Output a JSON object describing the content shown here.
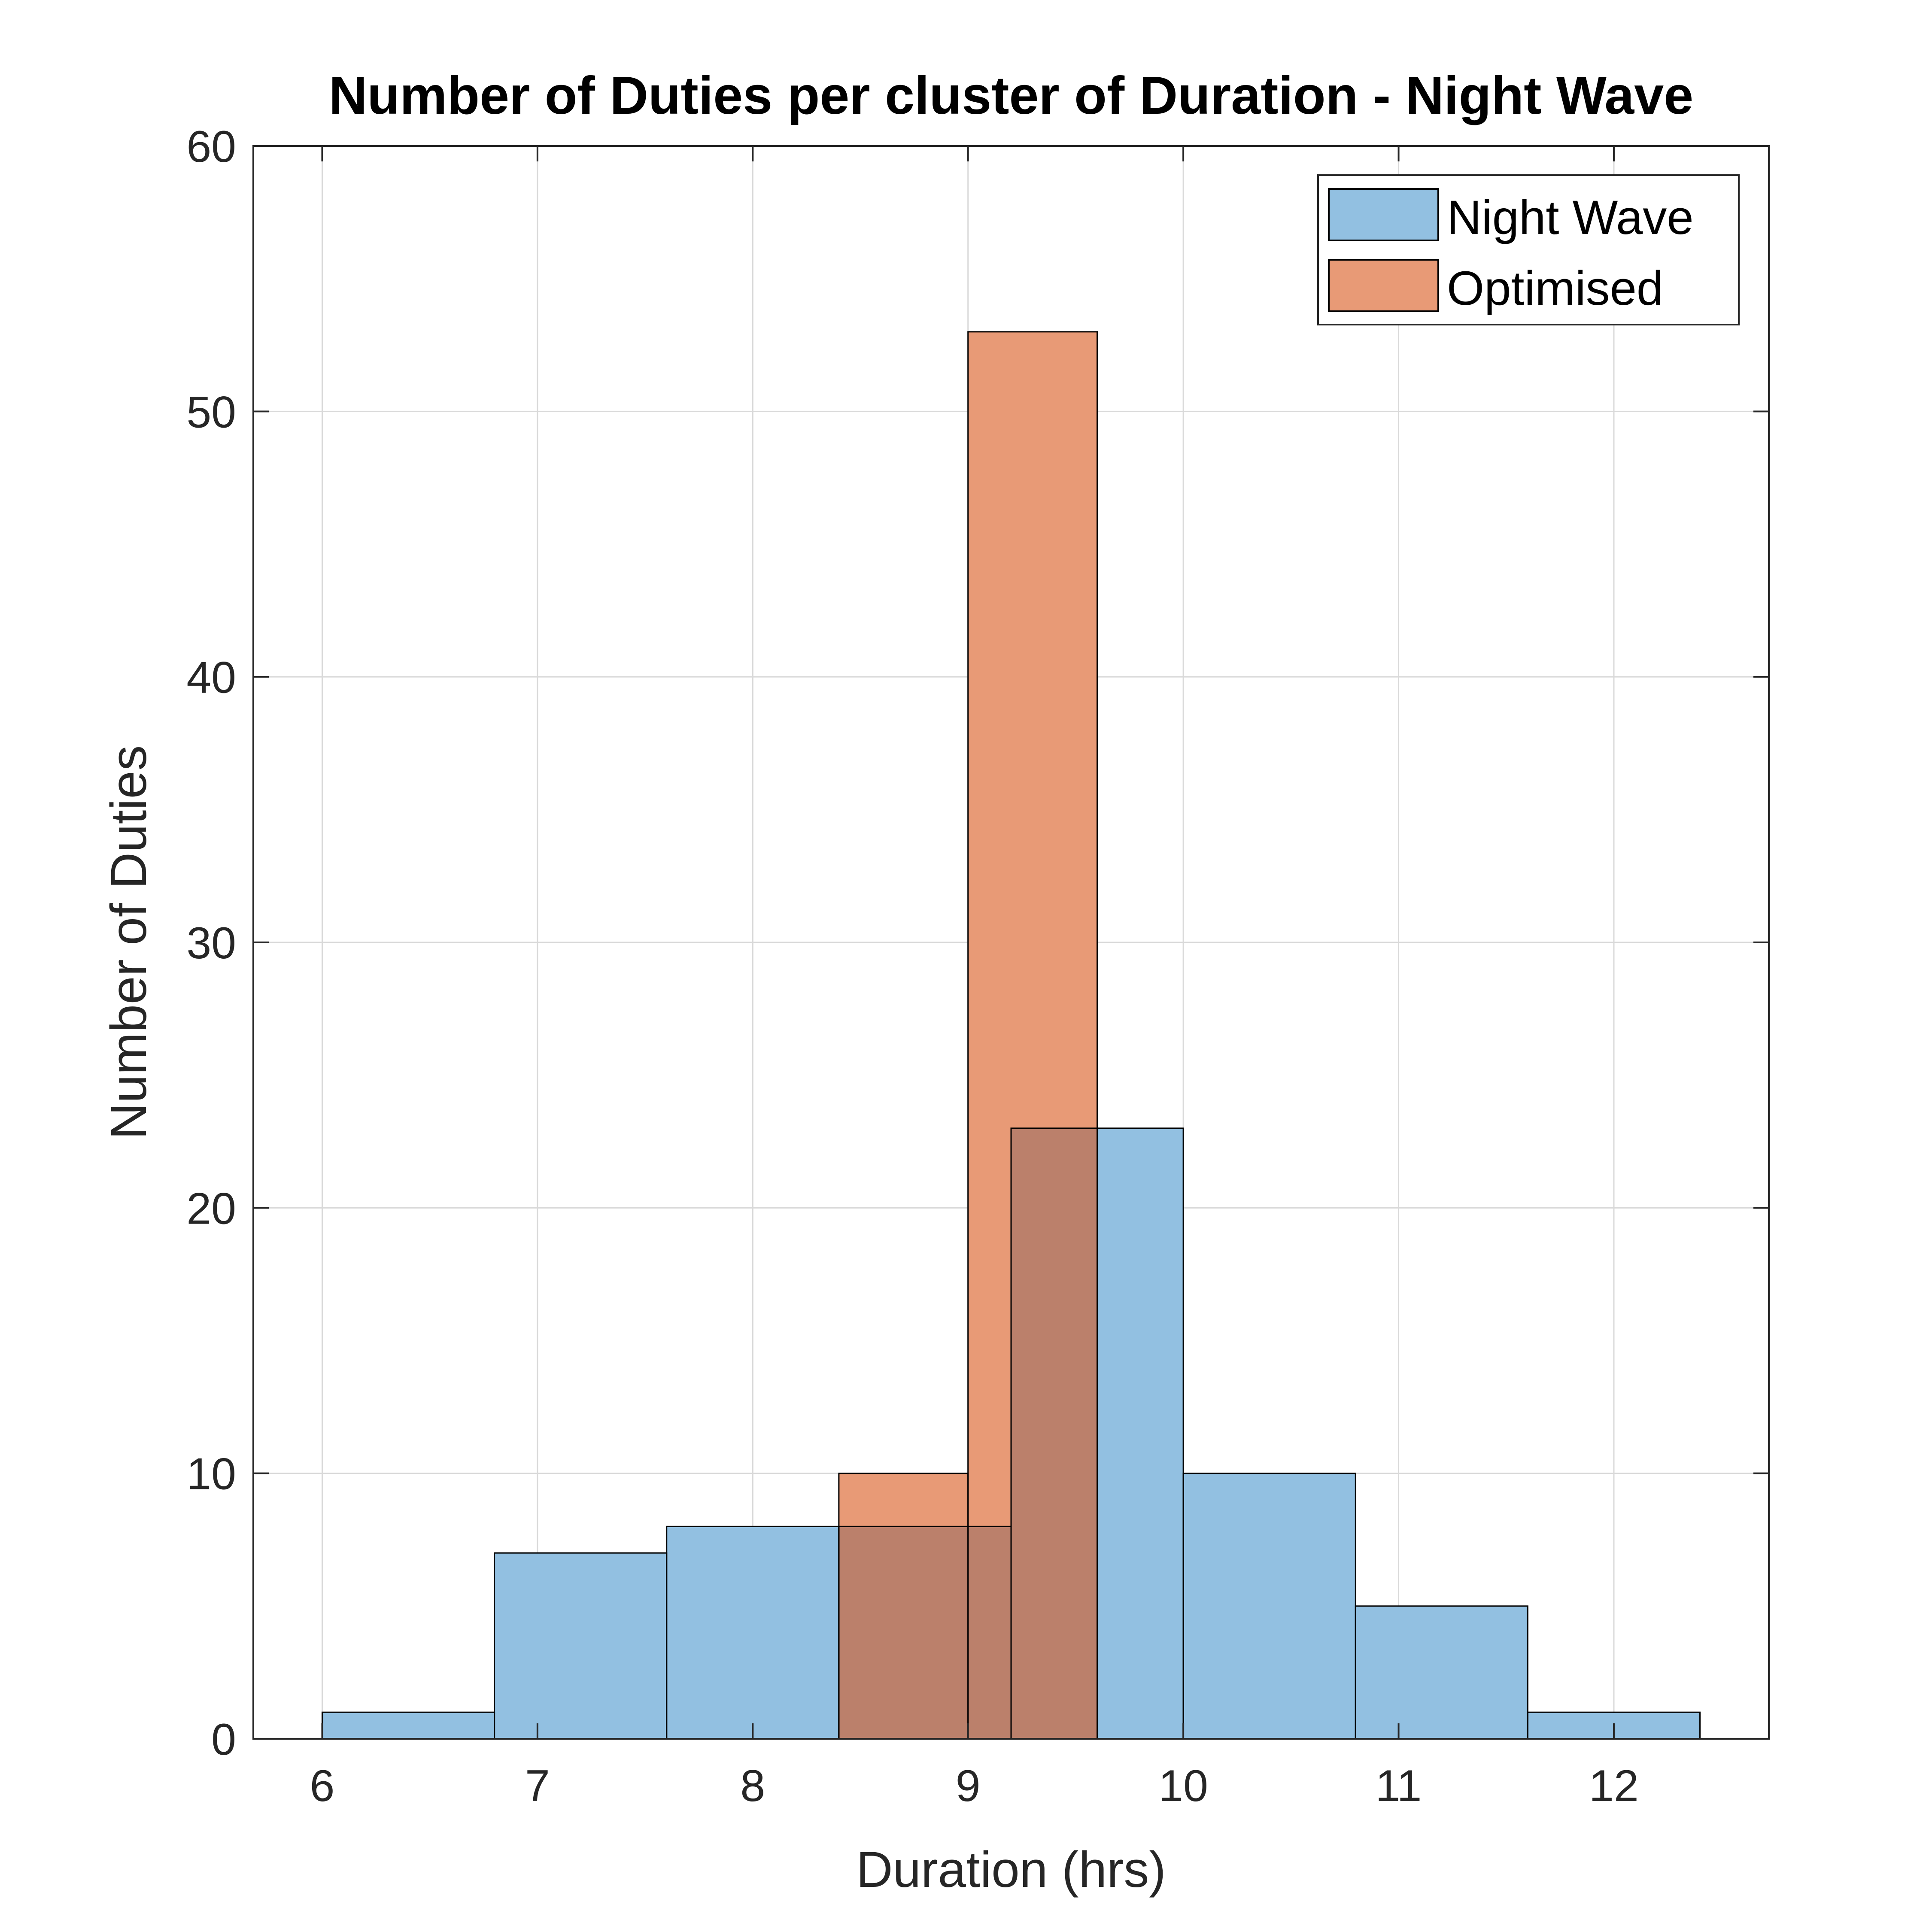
{
  "chart_data": {
    "type": "bar",
    "title": "Number of Duties per cluster of Duration - Night Wave",
    "xlabel": "Duration (hrs)",
    "ylabel": "Number of Duties",
    "xlim": [
      5.68,
      12.72
    ],
    "ylim": [
      0,
      60
    ],
    "xticks": [
      6,
      7,
      8,
      9,
      10,
      11,
      12
    ],
    "yticks": [
      0,
      10,
      20,
      30,
      40,
      50,
      60
    ],
    "grid": true,
    "legend_position": "top-right",
    "series": [
      {
        "name": "Night Wave",
        "color": "#0072BD",
        "fill": "#92C0E1",
        "bins": [
          {
            "x0": 6.0,
            "x1": 6.8,
            "value": 1
          },
          {
            "x0": 6.8,
            "x1": 7.6,
            "value": 7
          },
          {
            "x0": 7.6,
            "x1": 8.4,
            "value": 8
          },
          {
            "x0": 8.4,
            "x1": 9.2,
            "value": 8
          },
          {
            "x0": 9.2,
            "x1": 10.0,
            "value": 23
          },
          {
            "x0": 10.0,
            "x1": 10.8,
            "value": 10
          },
          {
            "x0": 10.8,
            "x1": 11.6,
            "value": 5
          },
          {
            "x0": 11.6,
            "x1": 12.4,
            "value": 1
          }
        ]
      },
      {
        "name": "Optimised",
        "color": "#D95319",
        "fill": "#E89A76",
        "bins": [
          {
            "x0": 8.4,
            "x1": 9.0,
            "value": 10
          },
          {
            "x0": 9.0,
            "x1": 9.6,
            "value": 53
          }
        ]
      }
    ],
    "overlap_fill": "#BB806B"
  }
}
